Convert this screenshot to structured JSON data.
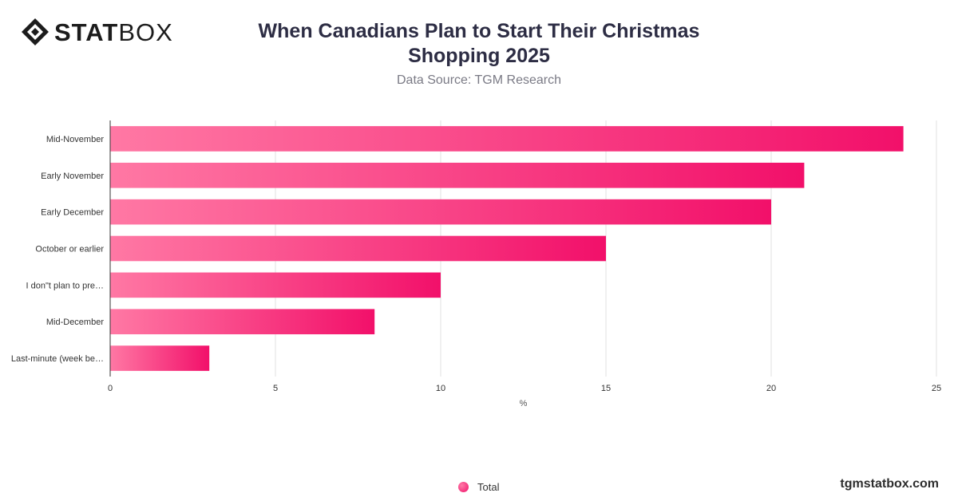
{
  "brand": {
    "logo_bold": "STAT",
    "logo_light": "BOX",
    "site": "tgmstatbox.com"
  },
  "colors": {
    "bar_start": "#ff78a4",
    "bar_end": "#f2106a",
    "grid": "#e2e2e2",
    "axis": "#333333"
  },
  "chart_data": {
    "type": "bar",
    "orientation": "horizontal",
    "title": "When Canadians Plan to Start Their Christmas Shopping 2025",
    "subtitle": "Data Source: TGM Research",
    "categories": [
      "Mid-November",
      "Early November",
      "Early December",
      "October or earlier",
      "I don\"t plan to pre…",
      "Mid-December",
      "Last-minute (week be…"
    ],
    "series": [
      {
        "name": "Total",
        "values": [
          24,
          21,
          20,
          15,
          10,
          8,
          3
        ]
      }
    ],
    "xlabel": "%",
    "ylabel": "",
    "xlim": [
      0,
      25
    ],
    "xticks": [
      0,
      5,
      10,
      15,
      20,
      25
    ],
    "grid": true,
    "legend_position": "bottom"
  }
}
